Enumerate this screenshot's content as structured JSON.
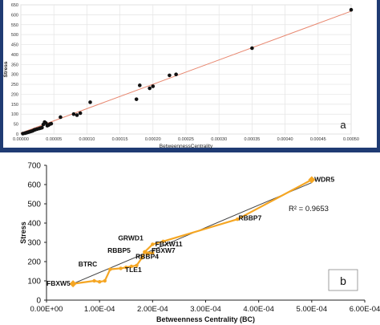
{
  "chart_data": [
    {
      "type": "scatter",
      "panel_label": "a",
      "xlabel": "BetweennessCentrality",
      "ylabel": "Stress",
      "xlim": [
        0,
        0.0005
      ],
      "ylim": [
        0,
        650
      ],
      "x_ticks": [
        "0.00000",
        "0.00005",
        "0.00010",
        "0.00015",
        "0.00020",
        "0.00025",
        "0.00030",
        "0.00035",
        "0.00040",
        "0.00045",
        "0.00050"
      ],
      "y_ticks": [
        "0",
        "50",
        "100",
        "150",
        "200",
        "250",
        "300",
        "350",
        "400",
        "450",
        "500",
        "550",
        "600",
        "650"
      ],
      "grid": true,
      "trendline": {
        "x": [
          0,
          0.0005
        ],
        "y": [
          5,
          618
        ],
        "color": "#e8876f"
      },
      "points": {
        "x": [
          3e-06,
          6e-06,
          8e-06,
          1e-05,
          1.2e-05,
          1.4e-05,
          1.6e-05,
          1.8e-05,
          2e-05,
          2.2e-05,
          2.5e-05,
          2.8e-05,
          3e-05,
          3.2e-05,
          3.4e-05,
          3.6e-05,
          3.8e-05,
          4e-05,
          4.2e-05,
          4.4e-05,
          4.6e-05,
          6e-05,
          8e-05,
          8.5e-05,
          9e-05,
          0.000105,
          0.000175,
          0.00018,
          0.000195,
          0.0002,
          0.000225,
          0.000235,
          0.00035,
          0.0005
        ],
        "y": [
          2,
          4,
          6,
          8,
          10,
          12,
          14,
          16,
          20,
          22,
          25,
          28,
          30,
          32,
          48,
          60,
          55,
          42,
          45,
          50,
          52,
          85,
          100,
          95,
          105,
          160,
          175,
          245,
          230,
          240,
          295,
          300,
          432,
          625
        ],
        "color": "#111111"
      }
    },
    {
      "type": "line",
      "panel_label": "b",
      "xlabel": "Betweenness Centrality (BC)",
      "ylabel": "Stress",
      "xlim": [
        0,
        0.0006
      ],
      "ylim": [
        0,
        700
      ],
      "x_ticks": [
        "0.00E+00",
        "1.00E-04",
        "2.00E-04",
        "3.00E-04",
        "4.00E-04",
        "5.00E-04",
        "6.00E-04"
      ],
      "y_ticks": [
        "0",
        "100",
        "200",
        "300",
        "400",
        "500",
        "600",
        "700"
      ],
      "annotation": "R² = 0.9653",
      "fit_line": {
        "x": [
          5e-05,
          0.0005
        ],
        "y": [
          85,
          610
        ],
        "color": "#444444"
      },
      "series": [
        {
          "color": "#f5a623",
          "x": [
            5e-05,
            9e-05,
            0.0001,
            0.00011,
            0.00012,
            0.00014,
            0.00015,
            0.00016,
            0.00017,
            0.00018,
            0.000185,
            0.00019,
            0.0002,
            0.000185,
            0.0002,
            0.00022,
            0.00036,
            0.0005
          ],
          "y": [
            85,
            100,
            95,
            100,
            160,
            165,
            170,
            175,
            180,
            220,
            250,
            240,
            245,
            250,
            290,
            305,
            420,
            625
          ]
        }
      ],
      "labels": [
        {
          "text": "WDR5",
          "x": 0.000505,
          "y": 615
        },
        {
          "text": "RBBP7",
          "x": 0.000362,
          "y": 415
        },
        {
          "text": "GRWD1",
          "x": 0.000135,
          "y": 310
        },
        {
          "text": "FBXW11",
          "x": 0.000205,
          "y": 280
        },
        {
          "text": "RBBP5",
          "x": 0.000115,
          "y": 245
        },
        {
          "text": "FBXW7",
          "x": 0.000198,
          "y": 245
        },
        {
          "text": "RBBP4",
          "x": 0.000168,
          "y": 215
        },
        {
          "text": "BTRC",
          "x": 6e-05,
          "y": 175
        },
        {
          "text": "TLE1",
          "x": 0.000148,
          "y": 145
        },
        {
          "text": "FBXW5",
          "x": 0.0,
          "y": 75
        }
      ],
      "panel_color": "#1f3b73"
    }
  ]
}
